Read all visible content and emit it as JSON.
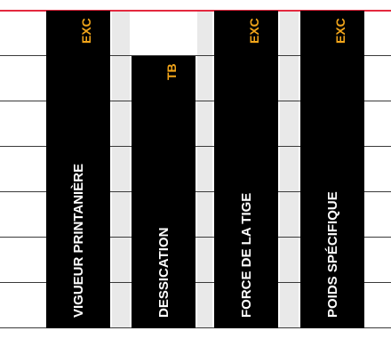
{
  "colors": {
    "top_rule": "#e4293f",
    "bar": "#000000",
    "band": "#e9e9e9",
    "grid_line": "#3a3a3a",
    "bar_label": "#ffffff",
    "grade_label": "#f2a51a"
  },
  "chart_data": {
    "type": "bar",
    "orientation": "vertical",
    "grid": true,
    "scale_levels": 7,
    "categories": [
      "VIGUEUR PRINTANIÈRE",
      "DESSICATION",
      "FORCE DE LA TIGE",
      "POIDS SPÉCIFIQUE"
    ],
    "grades": [
      "EXC",
      "TB",
      "EXC",
      "EXC"
    ],
    "values": [
      7,
      6,
      7,
      7
    ]
  }
}
